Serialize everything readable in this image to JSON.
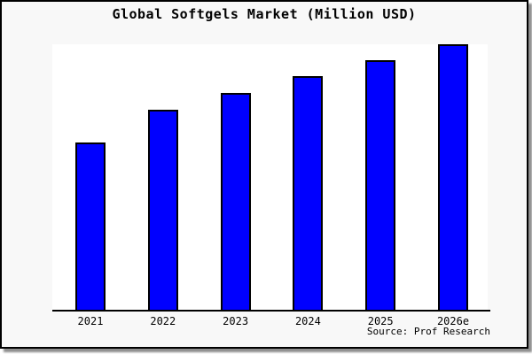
{
  "title": "Global Softgels Market (Million USD)",
  "source": "Source: Prof Research",
  "colors": {
    "bar_fill": "#0000ff",
    "bar_border": "#000000",
    "canvas_background": "#f8f8f8",
    "plot_background": "#ffffff",
    "frame_border": "#000000",
    "shadow": "#8f8f8f",
    "text": "#000000"
  },
  "chart_data": {
    "type": "bar",
    "title": "Global Softgels Market (Million USD)",
    "categories": [
      "2021",
      "2022",
      "2023",
      "2024",
      "2025",
      "2026e"
    ],
    "values": [
      189,
      226,
      245,
      264,
      282,
      300
    ],
    "values_note": "y-axis has no scale or tick labels; values are relative bar heights (pixels above baseline), 2026e tallest at ~300",
    "xlabel": "",
    "ylabel": "",
    "ylim": [
      0,
      303
    ],
    "grid": false,
    "legend": false,
    "annotation": "Source: Prof Research"
  }
}
